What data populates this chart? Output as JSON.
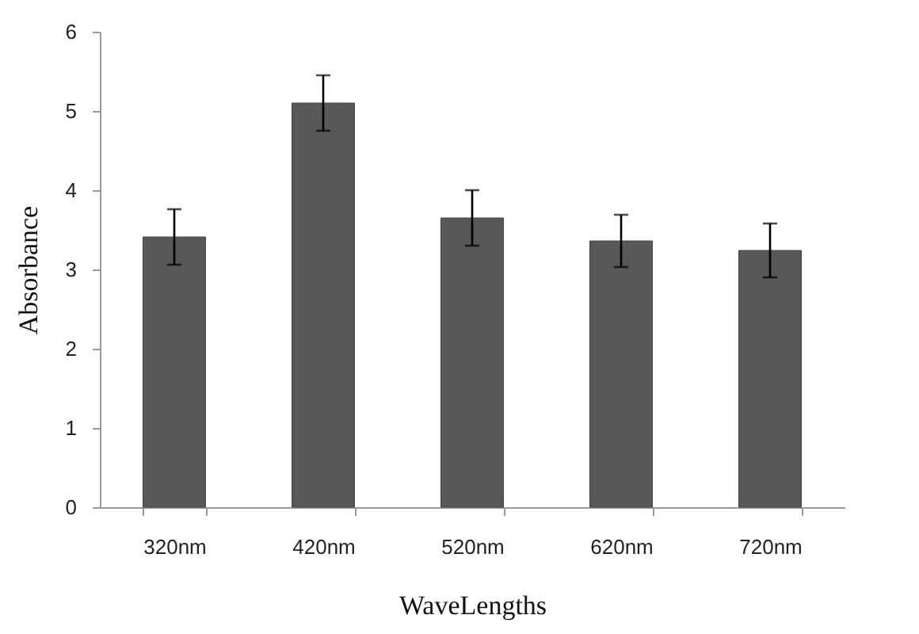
{
  "chart_data": {
    "type": "bar",
    "xlabel": "WaveLengths",
    "ylabel": "Absorbance",
    "categories": [
      "320nm",
      "420nm",
      "520nm",
      "620nm",
      "720nm"
    ],
    "values": [
      3.41,
      5.1,
      3.65,
      3.36,
      3.24
    ],
    "errors": [
      0.35,
      0.35,
      0.35,
      0.33,
      0.34
    ],
    "color": "#585858",
    "ylim": [
      0,
      6
    ],
    "yticks": [
      0,
      1,
      2,
      3,
      4,
      5,
      6
    ],
    "grid": false
  }
}
